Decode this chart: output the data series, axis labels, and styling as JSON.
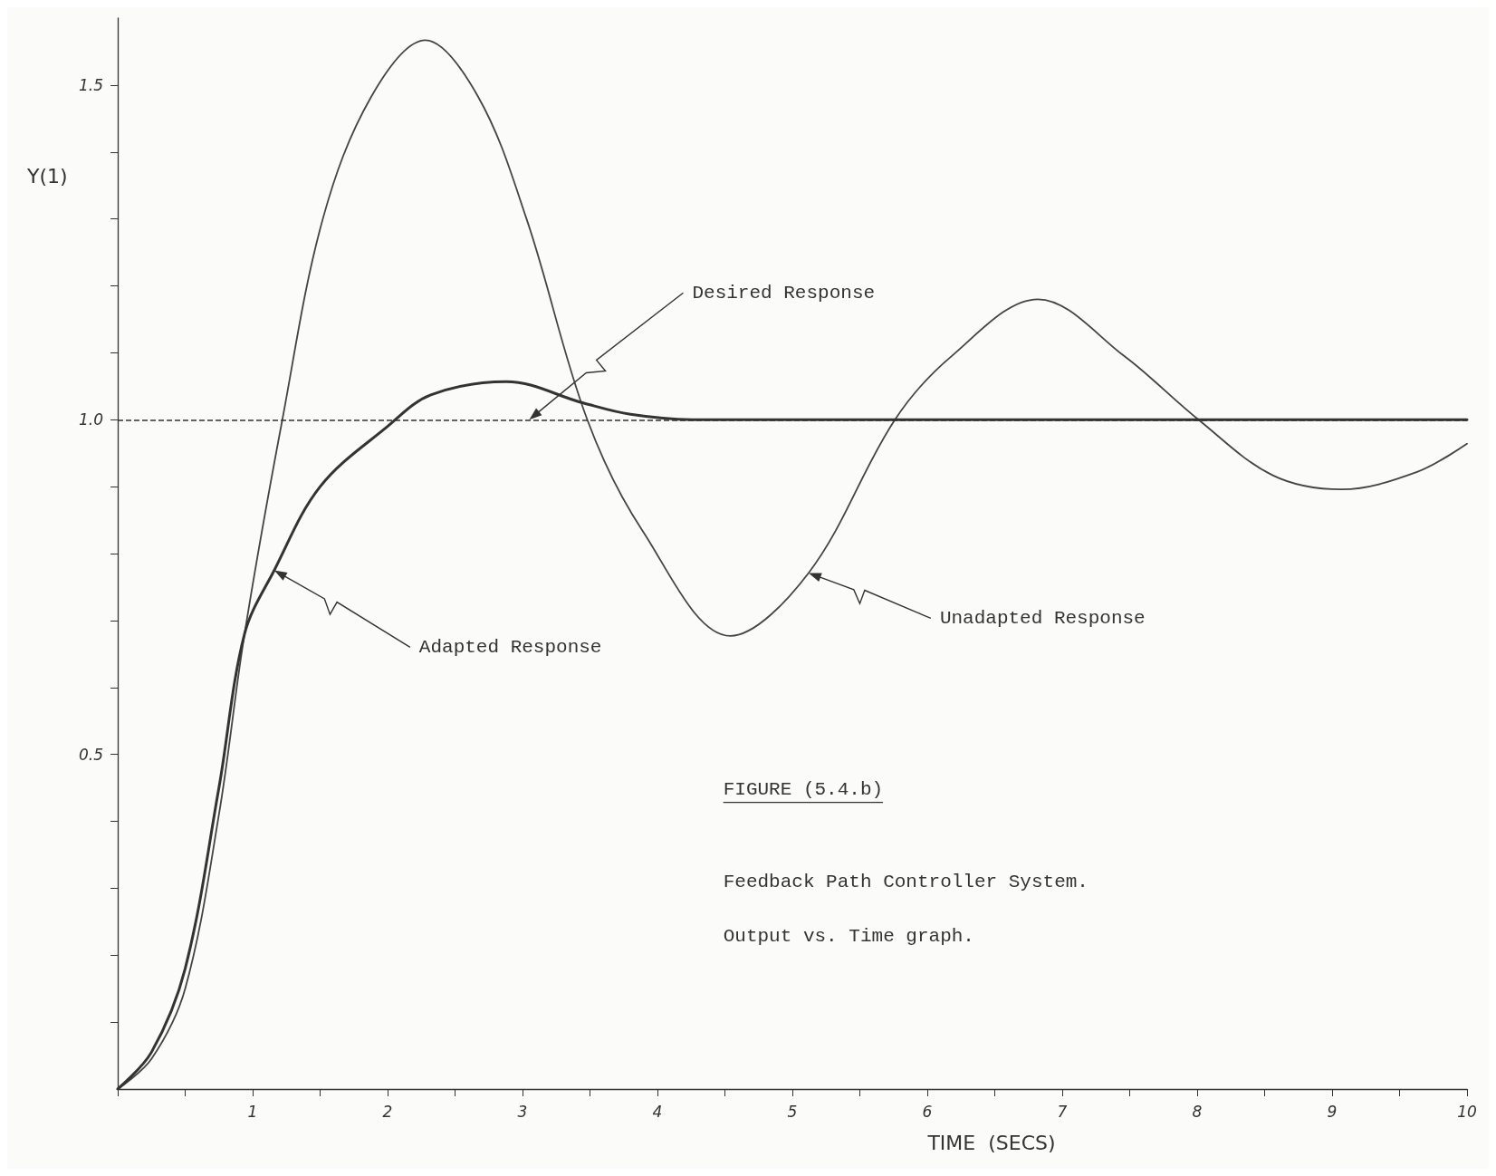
{
  "chart_data": {
    "type": "line",
    "xlabel": "TIME  (SECS)",
    "ylabel": "Y(1)",
    "xlim": [
      0,
      10
    ],
    "ylim": [
      0,
      1.6
    ],
    "xticks": [
      {
        "value": 0,
        "label": null
      },
      {
        "value": 0.5,
        "label": null
      },
      1,
      {
        "value": 1.5,
        "label": null
      },
      2,
      {
        "value": 2.5,
        "label": null
      },
      3,
      {
        "value": 3.5,
        "label": null
      },
      4,
      {
        "value": 4.5,
        "label": null
      },
      5,
      {
        "value": 5.5,
        "label": null
      },
      6,
      {
        "value": 6.5,
        "label": null
      },
      7,
      {
        "value": 7.5,
        "label": null
      },
      8,
      {
        "value": 8.5,
        "label": null
      },
      9,
      {
        "value": 9.5,
        "label": null
      },
      10
    ],
    "yticks": [
      {
        "value": 0.1,
        "label": null
      },
      {
        "value": 0.2,
        "label": null
      },
      {
        "value": 0.3,
        "label": null
      },
      {
        "value": 0.4,
        "label": null
      },
      0.5,
      {
        "value": 0.6,
        "label": null
      },
      {
        "value": 0.7,
        "label": null
      },
      {
        "value": 0.8,
        "label": null
      },
      {
        "value": 0.9,
        "label": null
      },
      {
        "value": 1.0,
        "label": "1.0"
      },
      {
        "value": 1.1,
        "label": null
      },
      {
        "value": 1.2,
        "label": null
      },
      {
        "value": 1.3,
        "label": null
      },
      {
        "value": 1.4,
        "label": null
      },
      1.5
    ],
    "grid": false,
    "marker": "none",
    "line_style": "solid",
    "series": [
      {
        "color": "#333333",
        "x": [
          0,
          0.25,
          0.5,
          0.75,
          0.94,
          1.16,
          1.5,
          2,
          2.32,
          2.88,
          3.45,
          3.8,
          4.28,
          10
        ],
        "values": [
          0,
          0.055,
          0.18,
          0.45,
          0.68,
          0.775,
          0.9,
          0.99,
          1.037,
          1.057,
          1.025,
          1.008,
          1.0,
          1.0
        ]
      },
      {
        "color": "#444444",
        "x": [
          0,
          0.25,
          0.5,
          0.75,
          0.94,
          1.22,
          1.52,
          1.88,
          2.28,
          2.67,
          3.03,
          3.48,
          3.89,
          4.54,
          5.12,
          5.76,
          6.18,
          6.82,
          7.46,
          8.01,
          8.56,
          9.07,
          9.63,
          10
        ],
        "values": [
          0,
          0.045,
          0.15,
          0.41,
          0.68,
          1.0,
          1.3,
          1.483,
          1.567,
          1.483,
          1.3,
          1.0,
          0.834,
          0.677,
          0.771,
          1.0,
          1.095,
          1.18,
          1.095,
          1.0,
          0.917,
          0.896,
          0.922,
          0.964
        ]
      }
    ],
    "ref_lines": [
      {
        "axis": "y",
        "value": 1.0,
        "color": "#333333",
        "line_style": "dashed"
      }
    ],
    "annotations": [
      {
        "text": "Desired Response",
        "x": 3.05,
        "y": 1.0
      },
      {
        "text": "Adapted Response",
        "x": 1.16,
        "y": 0.775
      },
      {
        "text": "Unadapted Response",
        "x": 5.12,
        "y": 0.771
      },
      "FIGURE (5.4.b)",
      "Feedback Path Controller System.",
      "Output vs. Time graph."
    ]
  }
}
